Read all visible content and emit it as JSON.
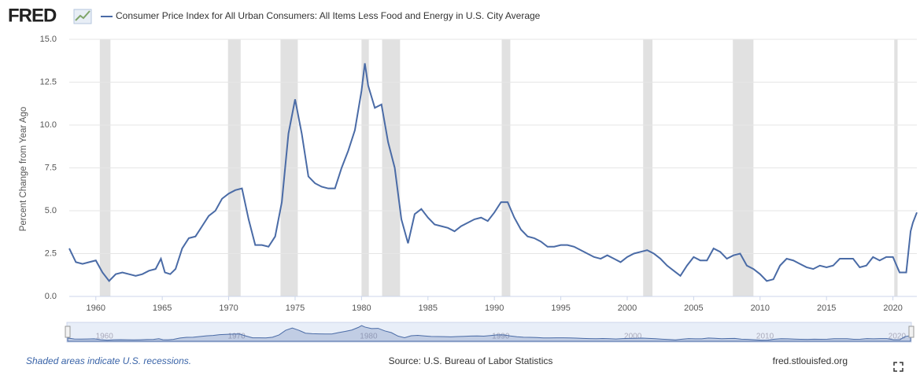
{
  "logo": "FRED",
  "chart_data": {
    "type": "line",
    "y_label": "Percent Change from Year Ago",
    "x": [
      1958.0,
      1958.5,
      1959.0,
      1959.5,
      1960.0,
      1960.5,
      1961.0,
      1961.5,
      1962.0,
      1962.5,
      1963.0,
      1963.5,
      1964.0,
      1964.5,
      1964.9,
      1965.2,
      1965.6,
      1966.0,
      1966.5,
      1967.0,
      1967.5,
      1968.0,
      1968.5,
      1969.0,
      1969.5,
      1970.0,
      1970.5,
      1971.0,
      1971.5,
      1972.0,
      1972.5,
      1973.0,
      1973.5,
      1974.0,
      1974.5,
      1975.0,
      1975.5,
      1976.0,
      1976.5,
      1977.0,
      1977.5,
      1978.0,
      1978.5,
      1979.0,
      1979.5,
      1980.0,
      1980.25,
      1980.5,
      1981.0,
      1981.5,
      1982.0,
      1982.5,
      1983.0,
      1983.5,
      1984.0,
      1984.5,
      1985.0,
      1985.5,
      1986.0,
      1986.5,
      1987.0,
      1987.5,
      1988.0,
      1988.5,
      1989.0,
      1989.5,
      1990.0,
      1990.5,
      1991.0,
      1991.5,
      1992.0,
      1992.5,
      1993.0,
      1993.5,
      1994.0,
      1994.5,
      1995.0,
      1995.5,
      1996.0,
      1996.5,
      1997.0,
      1997.5,
      1998.0,
      1998.5,
      1999.0,
      1999.5,
      2000.0,
      2000.5,
      2001.0,
      2001.5,
      2002.0,
      2002.5,
      2003.0,
      2003.5,
      2004.0,
      2004.5,
      2005.0,
      2005.5,
      2006.0,
      2006.5,
      2007.0,
      2007.5,
      2008.0,
      2008.5,
      2009.0,
      2009.5,
      2010.0,
      2010.5,
      2011.0,
      2011.5,
      2012.0,
      2012.5,
      2013.0,
      2013.5,
      2014.0,
      2014.5,
      2015.0,
      2015.5,
      2016.0,
      2016.5,
      2017.0,
      2017.5,
      2018.0,
      2018.5,
      2019.0,
      2019.5,
      2020.0,
      2020.5,
      2021.0,
      2021.33,
      2021.5,
      2021.8
    ],
    "series": [
      {
        "name": "Consumer Price Index for All Urban Consumers: All Items Less Food and Energy in U.S. City Average",
        "color": "#4a6ba6",
        "values": [
          2.8,
          2.0,
          1.9,
          2.0,
          2.1,
          1.4,
          0.9,
          1.3,
          1.4,
          1.3,
          1.2,
          1.3,
          1.5,
          1.6,
          2.2,
          1.4,
          1.3,
          1.6,
          2.8,
          3.4,
          3.5,
          4.1,
          4.7,
          5.0,
          5.7,
          6.0,
          6.2,
          6.3,
          4.5,
          3.0,
          3.0,
          2.9,
          3.5,
          5.5,
          9.5,
          11.5,
          9.5,
          7.0,
          6.6,
          6.4,
          6.3,
          6.3,
          7.5,
          8.5,
          9.7,
          12.0,
          13.6,
          12.3,
          11.0,
          11.2,
          9.0,
          7.5,
          4.5,
          3.1,
          4.8,
          5.1,
          4.6,
          4.2,
          4.1,
          4.0,
          3.8,
          4.1,
          4.3,
          4.5,
          4.6,
          4.4,
          4.9,
          5.5,
          5.5,
          4.6,
          3.9,
          3.5,
          3.4,
          3.2,
          2.9,
          2.9,
          3.0,
          3.0,
          2.9,
          2.7,
          2.5,
          2.3,
          2.2,
          2.4,
          2.2,
          2.0,
          2.3,
          2.5,
          2.6,
          2.7,
          2.5,
          2.2,
          1.8,
          1.5,
          1.2,
          1.8,
          2.3,
          2.1,
          2.1,
          2.8,
          2.6,
          2.2,
          2.4,
          2.5,
          1.8,
          1.6,
          1.3,
          0.9,
          1.0,
          1.8,
          2.2,
          2.1,
          1.9,
          1.7,
          1.6,
          1.8,
          1.7,
          1.8,
          2.2,
          2.2,
          2.2,
          1.7,
          1.8,
          2.3,
          2.1,
          2.3,
          2.3,
          1.4,
          1.4,
          3.8,
          4.3,
          4.9
        ]
      }
    ],
    "recessions": [
      [
        1960.3,
        1961.1
      ],
      [
        1969.95,
        1970.9
      ],
      [
        1973.9,
        1975.2
      ],
      [
        1980.0,
        1980.55
      ],
      [
        1981.55,
        1982.9
      ],
      [
        1990.55,
        1991.2
      ],
      [
        2001.2,
        2001.9
      ],
      [
        2007.95,
        2009.5
      ],
      [
        2020.1,
        2020.35
      ]
    ],
    "xlim": [
      1958.0,
      2021.8
    ],
    "xticks": [
      1960,
      1965,
      1970,
      1975,
      1980,
      1985,
      1990,
      1995,
      2000,
      2005,
      2010,
      2015,
      2020
    ],
    "ylim": [
      0,
      15
    ],
    "yticks": [
      {
        "value": 0,
        "label": "0.0"
      },
      2.5,
      {
        "value": 5,
        "label": "5.0"
      },
      7.5,
      {
        "value": 10,
        "label": "10.0"
      },
      12.5,
      {
        "value": 15,
        "label": "15.0"
      }
    ],
    "grid": true,
    "recession_note": "Shaded areas indicate U.S. recessions.",
    "source": "Source: U.S. Bureau of Labor Statistics",
    "site": "fred.stlouisfed.org"
  }
}
